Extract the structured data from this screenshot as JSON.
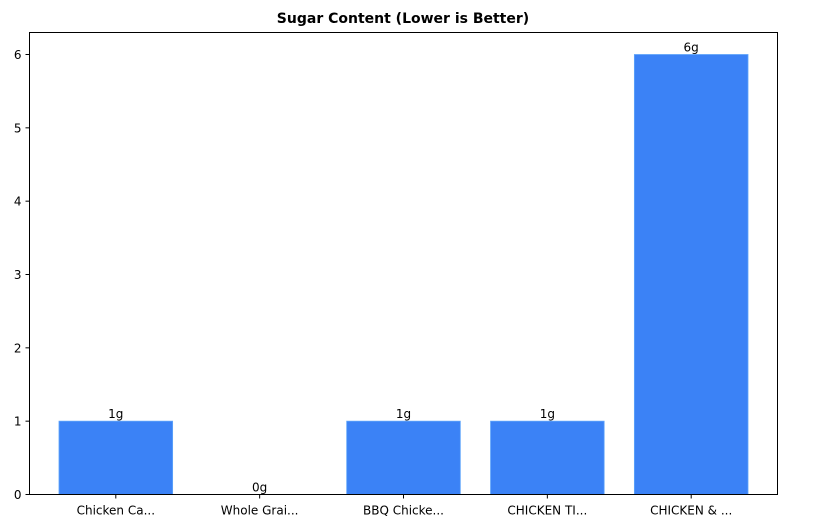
{
  "chart_data": {
    "type": "bar",
    "title": "Sugar Content (Lower is Better)",
    "xlabel": "",
    "ylabel": "",
    "categories": [
      "Chicken Ca...",
      "Whole Grai...",
      "BBQ Chicke...",
      "CHICKEN TI...",
      "CHICKEN & ..."
    ],
    "values": [
      1,
      0,
      1,
      1,
      6
    ],
    "value_labels": [
      "1g",
      "0g",
      "1g",
      "1g",
      "6g"
    ],
    "ylim": [
      0,
      6.3
    ],
    "yticks": [
      0,
      1,
      2,
      3,
      4,
      5,
      6
    ],
    "grid": false,
    "legend": null,
    "bar_color": "#3b82f6",
    "bar_edge_color": "#60a5fa"
  }
}
